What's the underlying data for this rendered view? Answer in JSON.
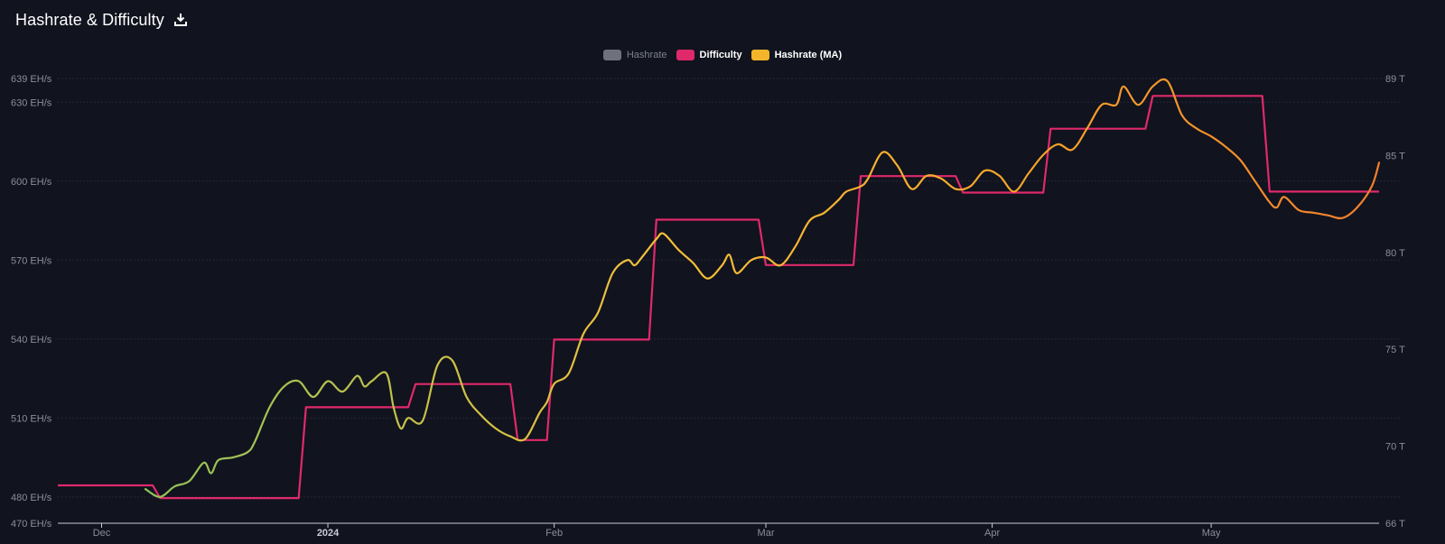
{
  "header": {
    "title": "Hashrate & Difficulty"
  },
  "legend": [
    {
      "label": "Hashrate",
      "color": "#6f717d",
      "active": false
    },
    {
      "label": "Difficulty",
      "color": "#e0296b",
      "active": true
    },
    {
      "label": "Hashrate (MA)",
      "color": "#f5b52a",
      "active": true
    }
  ],
  "chart_data": {
    "type": "line",
    "title": "Hashrate & Difficulty",
    "x_ticks": [
      {
        "label": "Dec",
        "x": "2023-12-01",
        "bold": false
      },
      {
        "label": "2024",
        "x": "2024-01-01",
        "bold": true
      },
      {
        "label": "Feb",
        "x": "2024-02-01",
        "bold": false
      },
      {
        "label": "Mar",
        "x": "2024-03-01",
        "bold": false
      },
      {
        "label": "Apr",
        "x": "2024-04-01",
        "bold": false
      },
      {
        "label": "May",
        "x": "2024-05-01",
        "bold": false
      }
    ],
    "x_range": [
      "2023-11-25",
      "2024-05-24"
    ],
    "y_left": {
      "unit": "EH/s",
      "range": [
        470,
        639
      ],
      "ticks": [
        {
          "value": 470,
          "label": "470 EH/s"
        },
        {
          "value": 480,
          "label": "480 EH/s"
        },
        {
          "value": 510,
          "label": "510 EH/s"
        },
        {
          "value": 540,
          "label": "540 EH/s"
        },
        {
          "value": 570,
          "label": "570 EH/s"
        },
        {
          "value": 600,
          "label": "600 EH/s"
        },
        {
          "value": 630,
          "label": "630 EH/s"
        },
        {
          "value": 639,
          "label": "639 EH/s"
        }
      ]
    },
    "y_right": {
      "unit": "T",
      "range": [
        66,
        89
      ],
      "ticks": [
        {
          "value": 66,
          "label": "66 T"
        },
        {
          "value": 70,
          "label": "70 T"
        },
        {
          "value": 75,
          "label": "75 T"
        },
        {
          "value": 80,
          "label": "80 T"
        },
        {
          "value": 85,
          "label": "85 T"
        },
        {
          "value": 89,
          "label": "89 T"
        }
      ]
    },
    "series": [
      {
        "name": "Difficulty",
        "axis": "right",
        "color": "#e0296b",
        "step": true,
        "points": [
          [
            "2023-11-25",
            67.96
          ],
          [
            "2023-12-08",
            67.96
          ],
          [
            "2023-12-09",
            67.3
          ],
          [
            "2023-12-28",
            67.3
          ],
          [
            "2023-12-29",
            72.0
          ],
          [
            "2024-01-12",
            72.0
          ],
          [
            "2024-01-13",
            73.2
          ],
          [
            "2024-01-26",
            73.2
          ],
          [
            "2024-01-27",
            70.3
          ],
          [
            "2024-01-31",
            70.3
          ],
          [
            "2024-02-01",
            75.5
          ],
          [
            "2024-02-14",
            75.5
          ],
          [
            "2024-02-15",
            81.7
          ],
          [
            "2024-02-29",
            81.7
          ],
          [
            "2024-03-01",
            79.35
          ],
          [
            "2024-03-13",
            79.35
          ],
          [
            "2024-03-14",
            83.95
          ],
          [
            "2024-03-27",
            83.95
          ],
          [
            "2024-03-28",
            83.1
          ],
          [
            "2024-04-08",
            83.1
          ],
          [
            "2024-04-09",
            86.4
          ],
          [
            "2024-04-22",
            86.4
          ],
          [
            "2024-04-23",
            88.1
          ],
          [
            "2024-05-08",
            88.1
          ],
          [
            "2024-05-09",
            83.15
          ],
          [
            "2024-05-24",
            83.15
          ]
        ]
      },
      {
        "name": "Hashrate (MA)",
        "axis": "left",
        "gradient": [
          "#8fc25a",
          "#f5c03a",
          "#f5a52a",
          "#f07f2e"
        ],
        "points": [
          [
            "2023-12-07",
            483
          ],
          [
            "2023-12-09",
            480
          ],
          [
            "2023-12-11",
            484
          ],
          [
            "2023-12-13",
            486
          ],
          [
            "2023-12-15",
            493
          ],
          [
            "2023-12-16",
            489
          ],
          [
            "2023-12-17",
            494
          ],
          [
            "2023-12-19",
            495
          ],
          [
            "2023-12-21",
            497
          ],
          [
            "2023-12-22",
            501
          ],
          [
            "2023-12-24",
            514
          ],
          [
            "2023-12-26",
            522
          ],
          [
            "2023-12-28",
            524
          ],
          [
            "2023-12-30",
            518
          ],
          [
            "2024-01-01",
            524
          ],
          [
            "2024-01-03",
            520
          ],
          [
            "2024-01-05",
            526
          ],
          [
            "2024-01-06",
            522
          ],
          [
            "2024-01-07",
            524
          ],
          [
            "2024-01-09",
            527
          ],
          [
            "2024-01-10",
            514
          ],
          [
            "2024-01-11",
            506
          ],
          [
            "2024-01-12",
            510
          ],
          [
            "2024-01-14",
            509
          ],
          [
            "2024-01-16",
            530
          ],
          [
            "2024-01-18",
            532
          ],
          [
            "2024-01-20",
            518
          ],
          [
            "2024-01-22",
            511
          ],
          [
            "2024-01-24",
            506
          ],
          [
            "2024-01-26",
            503
          ],
          [
            "2024-01-28",
            502
          ],
          [
            "2024-01-30",
            512
          ],
          [
            "2024-01-31",
            516
          ],
          [
            "2024-02-01",
            523
          ],
          [
            "2024-02-03",
            527
          ],
          [
            "2024-02-05",
            542
          ],
          [
            "2024-02-07",
            550
          ],
          [
            "2024-02-09",
            565
          ],
          [
            "2024-02-11",
            570
          ],
          [
            "2024-02-12",
            568
          ],
          [
            "2024-02-13",
            571
          ],
          [
            "2024-02-15",
            578
          ],
          [
            "2024-02-16",
            580
          ],
          [
            "2024-02-18",
            574
          ],
          [
            "2024-02-20",
            569
          ],
          [
            "2024-02-22",
            563
          ],
          [
            "2024-02-24",
            568
          ],
          [
            "2024-02-25",
            572
          ],
          [
            "2024-02-26",
            565
          ],
          [
            "2024-02-28",
            570
          ],
          [
            "2024-03-01",
            571
          ],
          [
            "2024-03-03",
            568
          ],
          [
            "2024-03-05",
            575
          ],
          [
            "2024-03-07",
            585
          ],
          [
            "2024-03-09",
            588
          ],
          [
            "2024-03-11",
            593
          ],
          [
            "2024-03-12",
            596
          ],
          [
            "2024-03-14",
            598
          ],
          [
            "2024-03-15",
            601
          ],
          [
            "2024-03-17",
            611
          ],
          [
            "2024-03-19",
            606
          ],
          [
            "2024-03-21",
            597
          ],
          [
            "2024-03-23",
            602
          ],
          [
            "2024-03-25",
            601
          ],
          [
            "2024-03-27",
            597
          ],
          [
            "2024-03-29",
            598
          ],
          [
            "2024-03-31",
            604
          ],
          [
            "2024-04-02",
            602
          ],
          [
            "2024-04-04",
            596
          ],
          [
            "2024-04-06",
            603
          ],
          [
            "2024-04-08",
            610
          ],
          [
            "2024-04-10",
            614
          ],
          [
            "2024-04-12",
            612
          ],
          [
            "2024-04-14",
            620
          ],
          [
            "2024-04-16",
            629
          ],
          [
            "2024-04-18",
            629
          ],
          [
            "2024-04-19",
            636
          ],
          [
            "2024-04-21",
            629
          ],
          [
            "2024-04-23",
            636
          ],
          [
            "2024-04-25",
            638
          ],
          [
            "2024-04-27",
            625
          ],
          [
            "2024-04-29",
            620
          ],
          [
            "2024-05-01",
            617
          ],
          [
            "2024-05-03",
            613
          ],
          [
            "2024-05-05",
            608
          ],
          [
            "2024-05-07",
            600
          ],
          [
            "2024-05-09",
            592
          ],
          [
            "2024-05-10",
            590
          ],
          [
            "2024-05-11",
            594
          ],
          [
            "2024-05-13",
            589
          ],
          [
            "2024-05-15",
            588
          ],
          [
            "2024-05-17",
            587
          ],
          [
            "2024-05-19",
            586
          ],
          [
            "2024-05-21",
            590
          ],
          [
            "2024-05-23",
            598
          ],
          [
            "2024-05-24",
            607
          ]
        ]
      }
    ],
    "grid": true,
    "legend_position": "top-center"
  }
}
